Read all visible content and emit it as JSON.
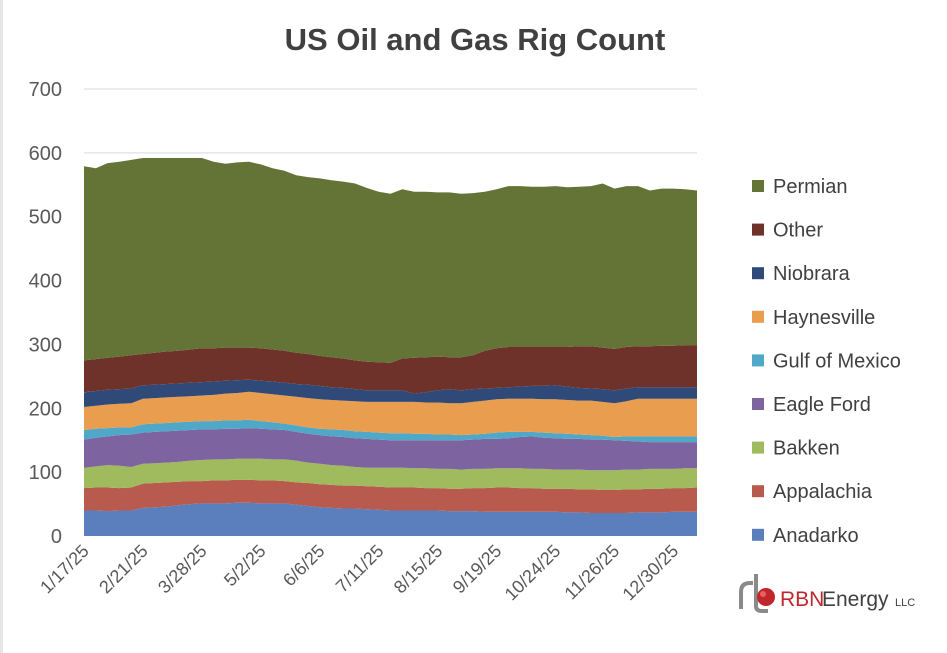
{
  "chart_data": {
    "type": "area",
    "stacked": true,
    "title": "US Oil and Gas Rig Count",
    "xlabel": "",
    "ylabel": "",
    "ylim": [
      0,
      700
    ],
    "yticks": [
      "0",
      "100",
      "200",
      "300",
      "400",
      "500",
      "600",
      "700"
    ],
    "ytick_values": [
      0,
      100,
      200,
      300,
      400,
      500,
      600,
      700
    ],
    "grid": true,
    "legend_position": "right",
    "x_interval": "weekly",
    "weeks_per_tick": 5,
    "tick_labels": [
      "1/17/25",
      "2/21/25",
      "3/28/25",
      "5/2/25",
      "6/6/25",
      "7/11/25",
      "8/15/25",
      "9/19/25",
      "10/24/25",
      "11/26/25",
      "12/30/25"
    ],
    "series": [
      {
        "name": "Anadarko",
        "color": "#5b7fbd",
        "values": [
          40,
          40,
          39,
          40,
          40,
          44,
          45,
          46,
          48,
          50,
          51,
          51,
          51,
          52,
          52,
          51,
          51,
          51,
          49,
          47,
          45,
          44,
          43,
          43,
          42,
          41,
          40,
          40,
          40,
          40,
          40,
          39,
          39,
          39,
          38,
          38,
          38,
          38,
          38,
          38,
          38,
          37,
          37,
          36,
          36,
          36,
          36,
          37,
          37,
          37,
          38,
          38,
          38
        ]
      },
      {
        "name": "Appalachia",
        "color": "#b85a4e",
        "values": [
          35,
          36,
          37,
          35,
          36,
          38,
          38,
          38,
          37,
          36,
          35,
          36,
          36,
          36,
          36,
          36,
          36,
          35,
          35,
          36,
          36,
          36,
          36,
          36,
          36,
          36,
          36,
          36,
          36,
          35,
          35,
          35,
          35,
          36,
          37,
          38,
          38,
          37,
          37,
          36,
          36,
          37,
          36,
          37,
          36,
          36,
          37,
          36,
          37,
          37,
          37,
          37,
          38
        ]
      },
      {
        "name": "Bakken",
        "color": "#9fbb5e",
        "values": [
          32,
          33,
          35,
          35,
          32,
          31,
          31,
          31,
          31,
          32,
          33,
          33,
          33,
          33,
          33,
          34,
          33,
          34,
          34,
          32,
          32,
          31,
          31,
          29,
          29,
          30,
          31,
          31,
          30,
          31,
          30,
          31,
          30,
          30,
          30,
          30,
          30,
          31,
          30,
          31,
          30,
          30,
          31,
          30,
          31,
          31,
          31,
          31,
          31,
          31,
          30,
          31,
          30
        ]
      },
      {
        "name": "Eagle Ford",
        "color": "#7d64a0",
        "values": [
          44,
          45,
          45,
          48,
          51,
          49,
          49,
          49,
          49,
          48,
          48,
          47,
          48,
          47,
          48,
          47,
          47,
          46,
          45,
          45,
          45,
          45,
          45,
          45,
          45,
          44,
          43,
          43,
          44,
          44,
          45,
          45,
          46,
          46,
          47,
          46,
          47,
          49,
          51,
          49,
          49,
          48,
          48,
          48,
          48,
          47,
          45,
          44,
          42,
          42,
          42,
          41,
          41
        ]
      },
      {
        "name": "Gulf of Mexico",
        "color": "#4fa8c8",
        "values": [
          15,
          14,
          13,
          12,
          11,
          13,
          13,
          13,
          13,
          13,
          13,
          13,
          13,
          13,
          13,
          12,
          11,
          10,
          10,
          10,
          10,
          11,
          11,
          11,
          11,
          11,
          11,
          11,
          10,
          10,
          9,
          9,
          8,
          8,
          8,
          10,
          10,
          8,
          7,
          8,
          8,
          8,
          7,
          7,
          6,
          5,
          7,
          8,
          9,
          9,
          9,
          9,
          9
        ]
      },
      {
        "name": "Haynesville",
        "color": "#e99d4e",
        "values": [
          36,
          36,
          37,
          37,
          38,
          40,
          40,
          40,
          40,
          40,
          40,
          41,
          42,
          43,
          44,
          44,
          44,
          44,
          45,
          46,
          46,
          46,
          46,
          47,
          47,
          48,
          49,
          49,
          50,
          49,
          50,
          49,
          50,
          51,
          52,
          52,
          52,
          52,
          52,
          52,
          53,
          53,
          53,
          54,
          53,
          53,
          55,
          59,
          59,
          59,
          59,
          59,
          59
        ]
      },
      {
        "name": "Niobrara",
        "color": "#2f4a78",
        "values": [
          23,
          23,
          23,
          23,
          23,
          21,
          21,
          21,
          21,
          21,
          21,
          21,
          20,
          20,
          19,
          19,
          20,
          20,
          20,
          21,
          21,
          20,
          20,
          19,
          18,
          18,
          18,
          18,
          13,
          16,
          19,
          22,
          20,
          20,
          19,
          18,
          18,
          19,
          20,
          21,
          22,
          21,
          20,
          19,
          20,
          20,
          20,
          18,
          18,
          18,
          18,
          18,
          18
        ]
      },
      {
        "name": "Other",
        "color": "#6e322a",
        "values": [
          50,
          50,
          50,
          51,
          52,
          49,
          50,
          51,
          51,
          52,
          53,
          52,
          52,
          51,
          50,
          51,
          50,
          50,
          49,
          48,
          47,
          47,
          46,
          45,
          45,
          44,
          43,
          50,
          56,
          55,
          53,
          50,
          52,
          53,
          59,
          62,
          63,
          62,
          61,
          61,
          60,
          62,
          65,
          66,
          65,
          65,
          65,
          64,
          64,
          65,
          65,
          66,
          66
        ]
      },
      {
        "name": "Permian",
        "color": "#637436",
        "values": [
          304,
          299,
          305,
          305,
          306,
          307,
          305,
          303,
          302,
          300,
          298,
          292,
          288,
          290,
          291,
          288,
          284,
          282,
          278,
          277,
          278,
          277,
          277,
          277,
          272,
          267,
          265,
          265,
          260,
          259,
          257,
          258,
          256,
          254,
          249,
          249,
          252,
          252,
          251,
          251,
          252,
          250,
          250,
          251,
          257,
          251,
          252,
          251,
          244,
          246,
          246,
          244,
          242
        ]
      }
    ]
  },
  "logo": {
    "brand": "RBN",
    "name": "Energy",
    "suffix": "LLC",
    "brand_color": "#c0272d"
  }
}
